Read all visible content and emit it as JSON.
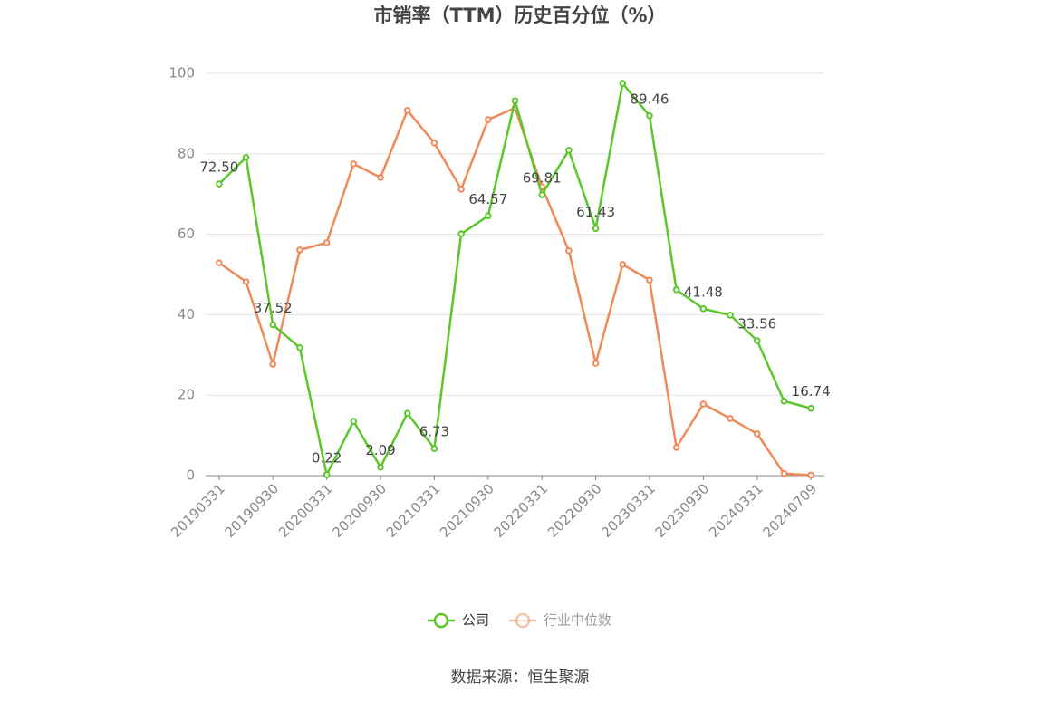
{
  "chart_data": {
    "type": "line",
    "title": "市销率（TTM）历史百分位（%）",
    "categories": [
      "20190331",
      null,
      "20190930",
      null,
      "20200331",
      null,
      "20200930",
      null,
      "20210331",
      null,
      "20210930",
      null,
      "20220331",
      null,
      "20220930",
      null,
      "20230331",
      null,
      "20230930",
      null,
      "20240331",
      null,
      "20240709"
    ],
    "series": [
      {
        "name": "公司",
        "color": "#5cc72c",
        "values": [
          72.5,
          79.1,
          37.52,
          31.8,
          0.22,
          13.5,
          2.09,
          15.5,
          6.73,
          60.1,
          64.57,
          93.2,
          69.81,
          80.9,
          61.43,
          97.5,
          89.46,
          46.2,
          41.48,
          39.9,
          33.56,
          18.5,
          16.74
        ],
        "value_labels": [
          "72.50",
          null,
          "37.52",
          null,
          "0.22",
          null,
          "2.09",
          null,
          "6.73",
          null,
          "64.57",
          null,
          "69.81",
          null,
          "61.43",
          null,
          "89.46",
          null,
          "41.48",
          null,
          "33.56",
          null,
          "16.74"
        ]
      },
      {
        "name": "行业中位数",
        "color": "#f0895a",
        "values": [
          52.9,
          48.2,
          27.7,
          56.1,
          57.9,
          77.5,
          74.1,
          90.8,
          82.7,
          71.2,
          88.5,
          91.4,
          71.8,
          55.9,
          27.9,
          52.5,
          48.6,
          7.0,
          17.8,
          14.2,
          10.4,
          0.5,
          0.1
        ]
      }
    ],
    "ylim": [
      0,
      100
    ],
    "yticks": [
      0,
      20,
      40,
      60,
      80,
      100
    ],
    "grid": true,
    "source": "数据来源：恒生聚源"
  }
}
